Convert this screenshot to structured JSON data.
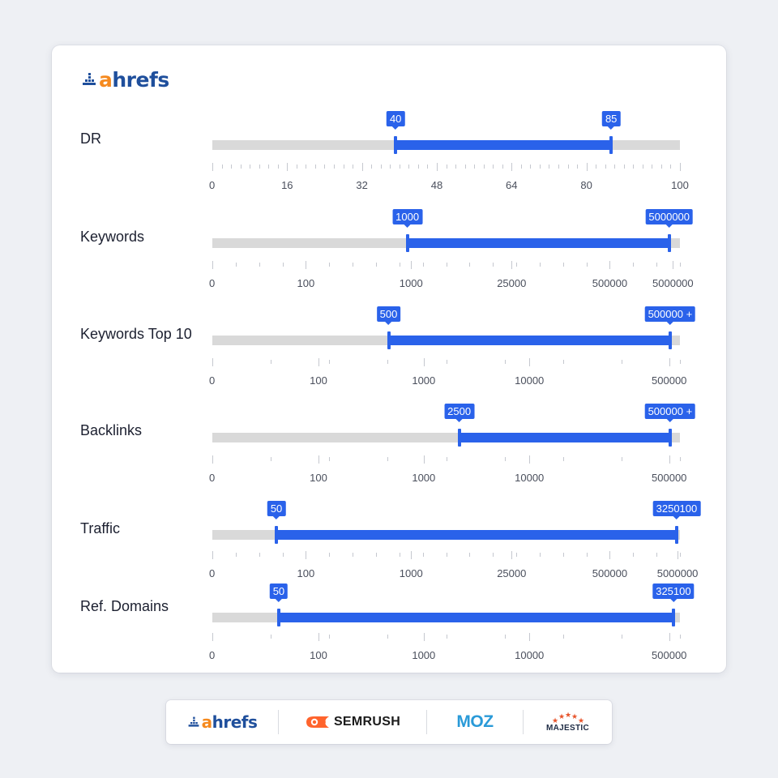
{
  "brand": {
    "name": "ahrefs",
    "letter_a": "a",
    "rest": "hrefs",
    "colors": {
      "orange": "#f58a1f",
      "blue": "#1f4f9c"
    }
  },
  "accent_color": "#2a62ea",
  "track_color": "#d9d9d9",
  "filters": [
    {
      "id": "dr",
      "label": "DR",
      "min_label": "40",
      "max_label": "85",
      "min_fraction": 0.392,
      "max_fraction": 0.853,
      "ticks": [
        "0",
        "16",
        "32",
        "48",
        "64",
        "80",
        "100"
      ]
    },
    {
      "id": "keywords",
      "label": "Keywords",
      "min_label": "1000",
      "max_label": "5000000",
      "min_fraction": 0.417,
      "max_fraction": 0.977,
      "ticks": [
        "0",
        "100",
        "1000",
        "25000",
        "500000",
        "5000000"
      ]
    },
    {
      "id": "keywords-top10",
      "label": "Keywords Top 10",
      "min_label": "500",
      "max_label": "500000 +",
      "min_fraction": 0.377,
      "max_fraction": 0.979,
      "ticks": [
        "0",
        "100",
        "1000",
        "10000",
        "500000"
      ]
    },
    {
      "id": "backlinks",
      "label": "Backlinks",
      "min_label": "2500",
      "max_label": "500000 +",
      "min_fraction": 0.528,
      "max_fraction": 0.979,
      "ticks": [
        "0",
        "100",
        "1000",
        "10000",
        "500000"
      ]
    },
    {
      "id": "traffic",
      "label": "Traffic",
      "min_label": "50",
      "max_label": "3250100",
      "min_fraction": 0.137,
      "max_fraction": 0.993,
      "ticks": [
        "0",
        "100",
        "1000",
        "25000",
        "500000",
        "5000000"
      ]
    },
    {
      "id": "ref-domains",
      "label": "Ref. Domains",
      "min_label": "50",
      "max_label": "325100",
      "min_fraction": 0.142,
      "max_fraction": 0.986,
      "ticks": [
        "0",
        "100",
        "1000",
        "10000",
        "500000"
      ]
    }
  ],
  "footer": {
    "logos": [
      {
        "id": "ahrefs",
        "letter_a": "a",
        "rest": "hrefs"
      },
      {
        "id": "semrush",
        "text": "SEMRUSH",
        "color": "#ff642d"
      },
      {
        "id": "moz",
        "text": "MOZ",
        "color": "#2a9ad8"
      },
      {
        "id": "majestic",
        "text": "MAJESTIC",
        "color": "#e8542b"
      }
    ]
  }
}
